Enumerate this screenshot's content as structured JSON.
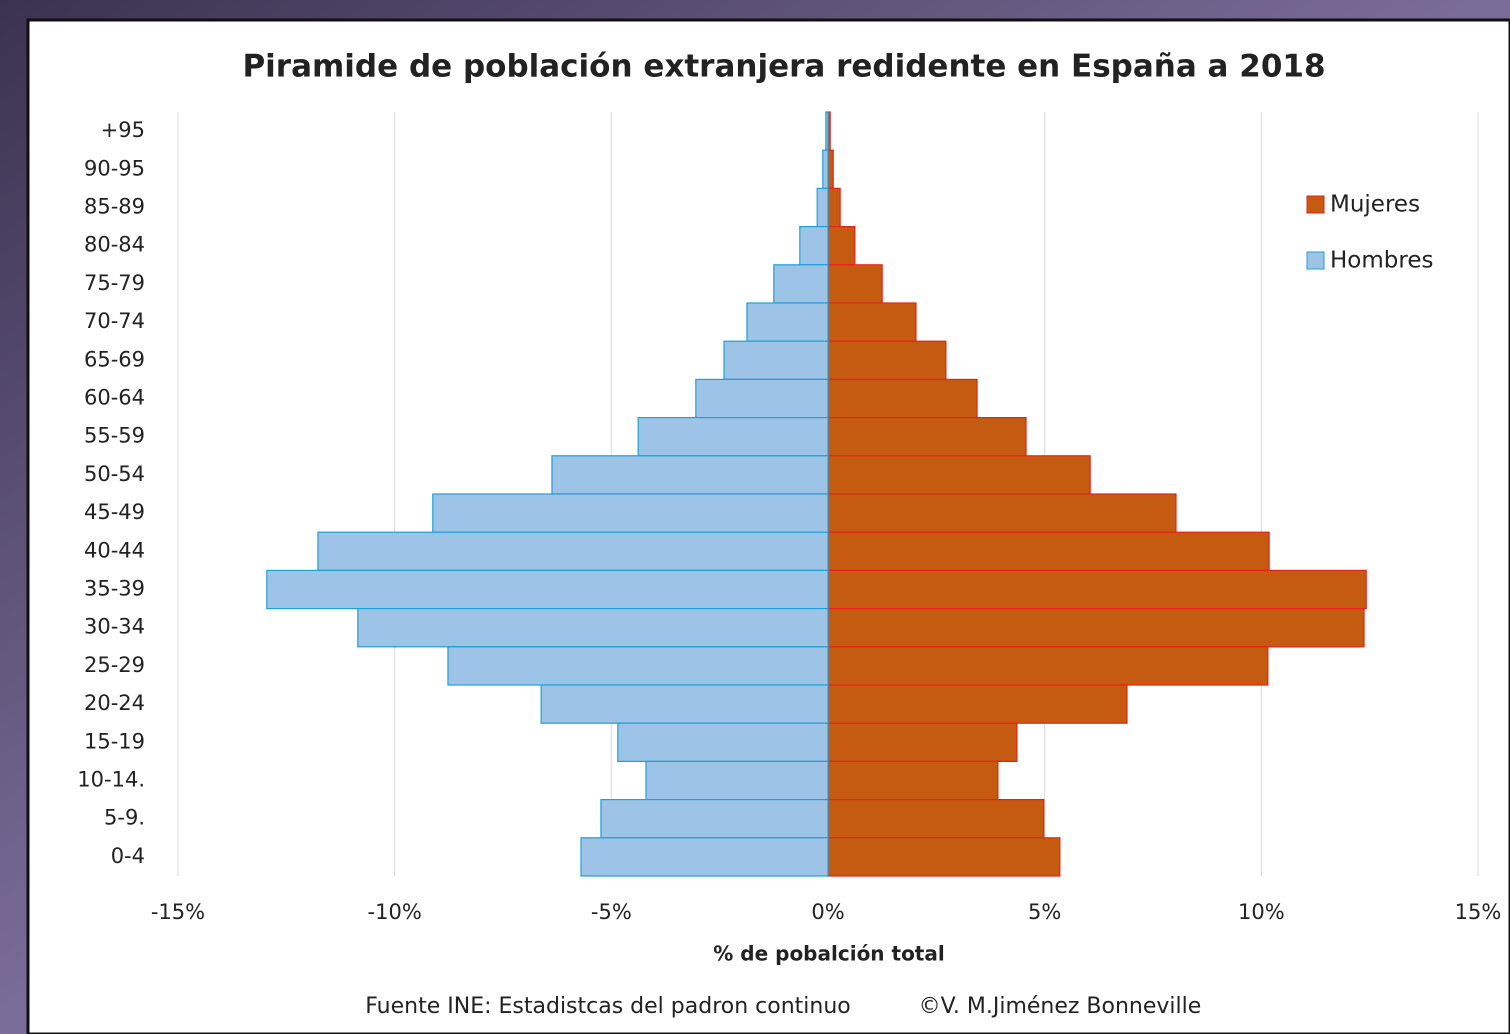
{
  "chart_data": {
    "type": "bar",
    "orientation": "horizontal",
    "title": "Piramide de población extranjera redidente en España a 2018",
    "x_label": "% de pobalción total",
    "source": "Fuente INE: Estadistcas del padron continuo",
    "credit": "©V. M.Jiménez Bonneville",
    "categories": [
      "+95",
      "90-95",
      "85-89",
      "80-84",
      "75-79",
      "70-74",
      "65-69",
      "60-64",
      "55-59",
      "50-54",
      "45-49",
      "40-44",
      "35-39",
      "30-34",
      "25-29",
      "20-24",
      "15-19",
      "10-14.",
      "5-9.",
      "0-4"
    ],
    "series": [
      {
        "name": "Mujeres",
        "color": "#c55a11",
        "edgecolor": "#e8221a",
        "values": [
          0.05,
          0.12,
          0.28,
          0.62,
          1.25,
          2.03,
          2.72,
          3.44,
          4.57,
          6.05,
          8.03,
          10.18,
          12.42,
          12.37,
          10.15,
          6.9,
          4.36,
          3.92,
          4.98,
          5.35
        ]
      },
      {
        "name": "Hombres",
        "color": "#9dc3e6",
        "edgecolor": "#1fa0d8",
        "values": [
          -0.05,
          -0.12,
          -0.25,
          -0.65,
          -1.25,
          -1.87,
          -2.4,
          -3.05,
          -4.38,
          -6.37,
          -9.12,
          -11.77,
          -12.95,
          -10.85,
          -8.77,
          -6.62,
          -4.85,
          -4.2,
          -5.24,
          -5.7
        ]
      }
    ],
    "xlim": [
      -15,
      15
    ],
    "xticks": [
      {
        "value": -15,
        "label": "-15%"
      },
      {
        "value": -10,
        "label": "-10%"
      },
      {
        "value": -5,
        "label": "-5%"
      },
      {
        "value": 0,
        "label": "0%"
      },
      {
        "value": 5,
        "label": "5%"
      },
      {
        "value": 10,
        "label": "10%"
      },
      {
        "value": 15,
        "label": "15%"
      }
    ],
    "grid": true,
    "legend": "upper right"
  }
}
